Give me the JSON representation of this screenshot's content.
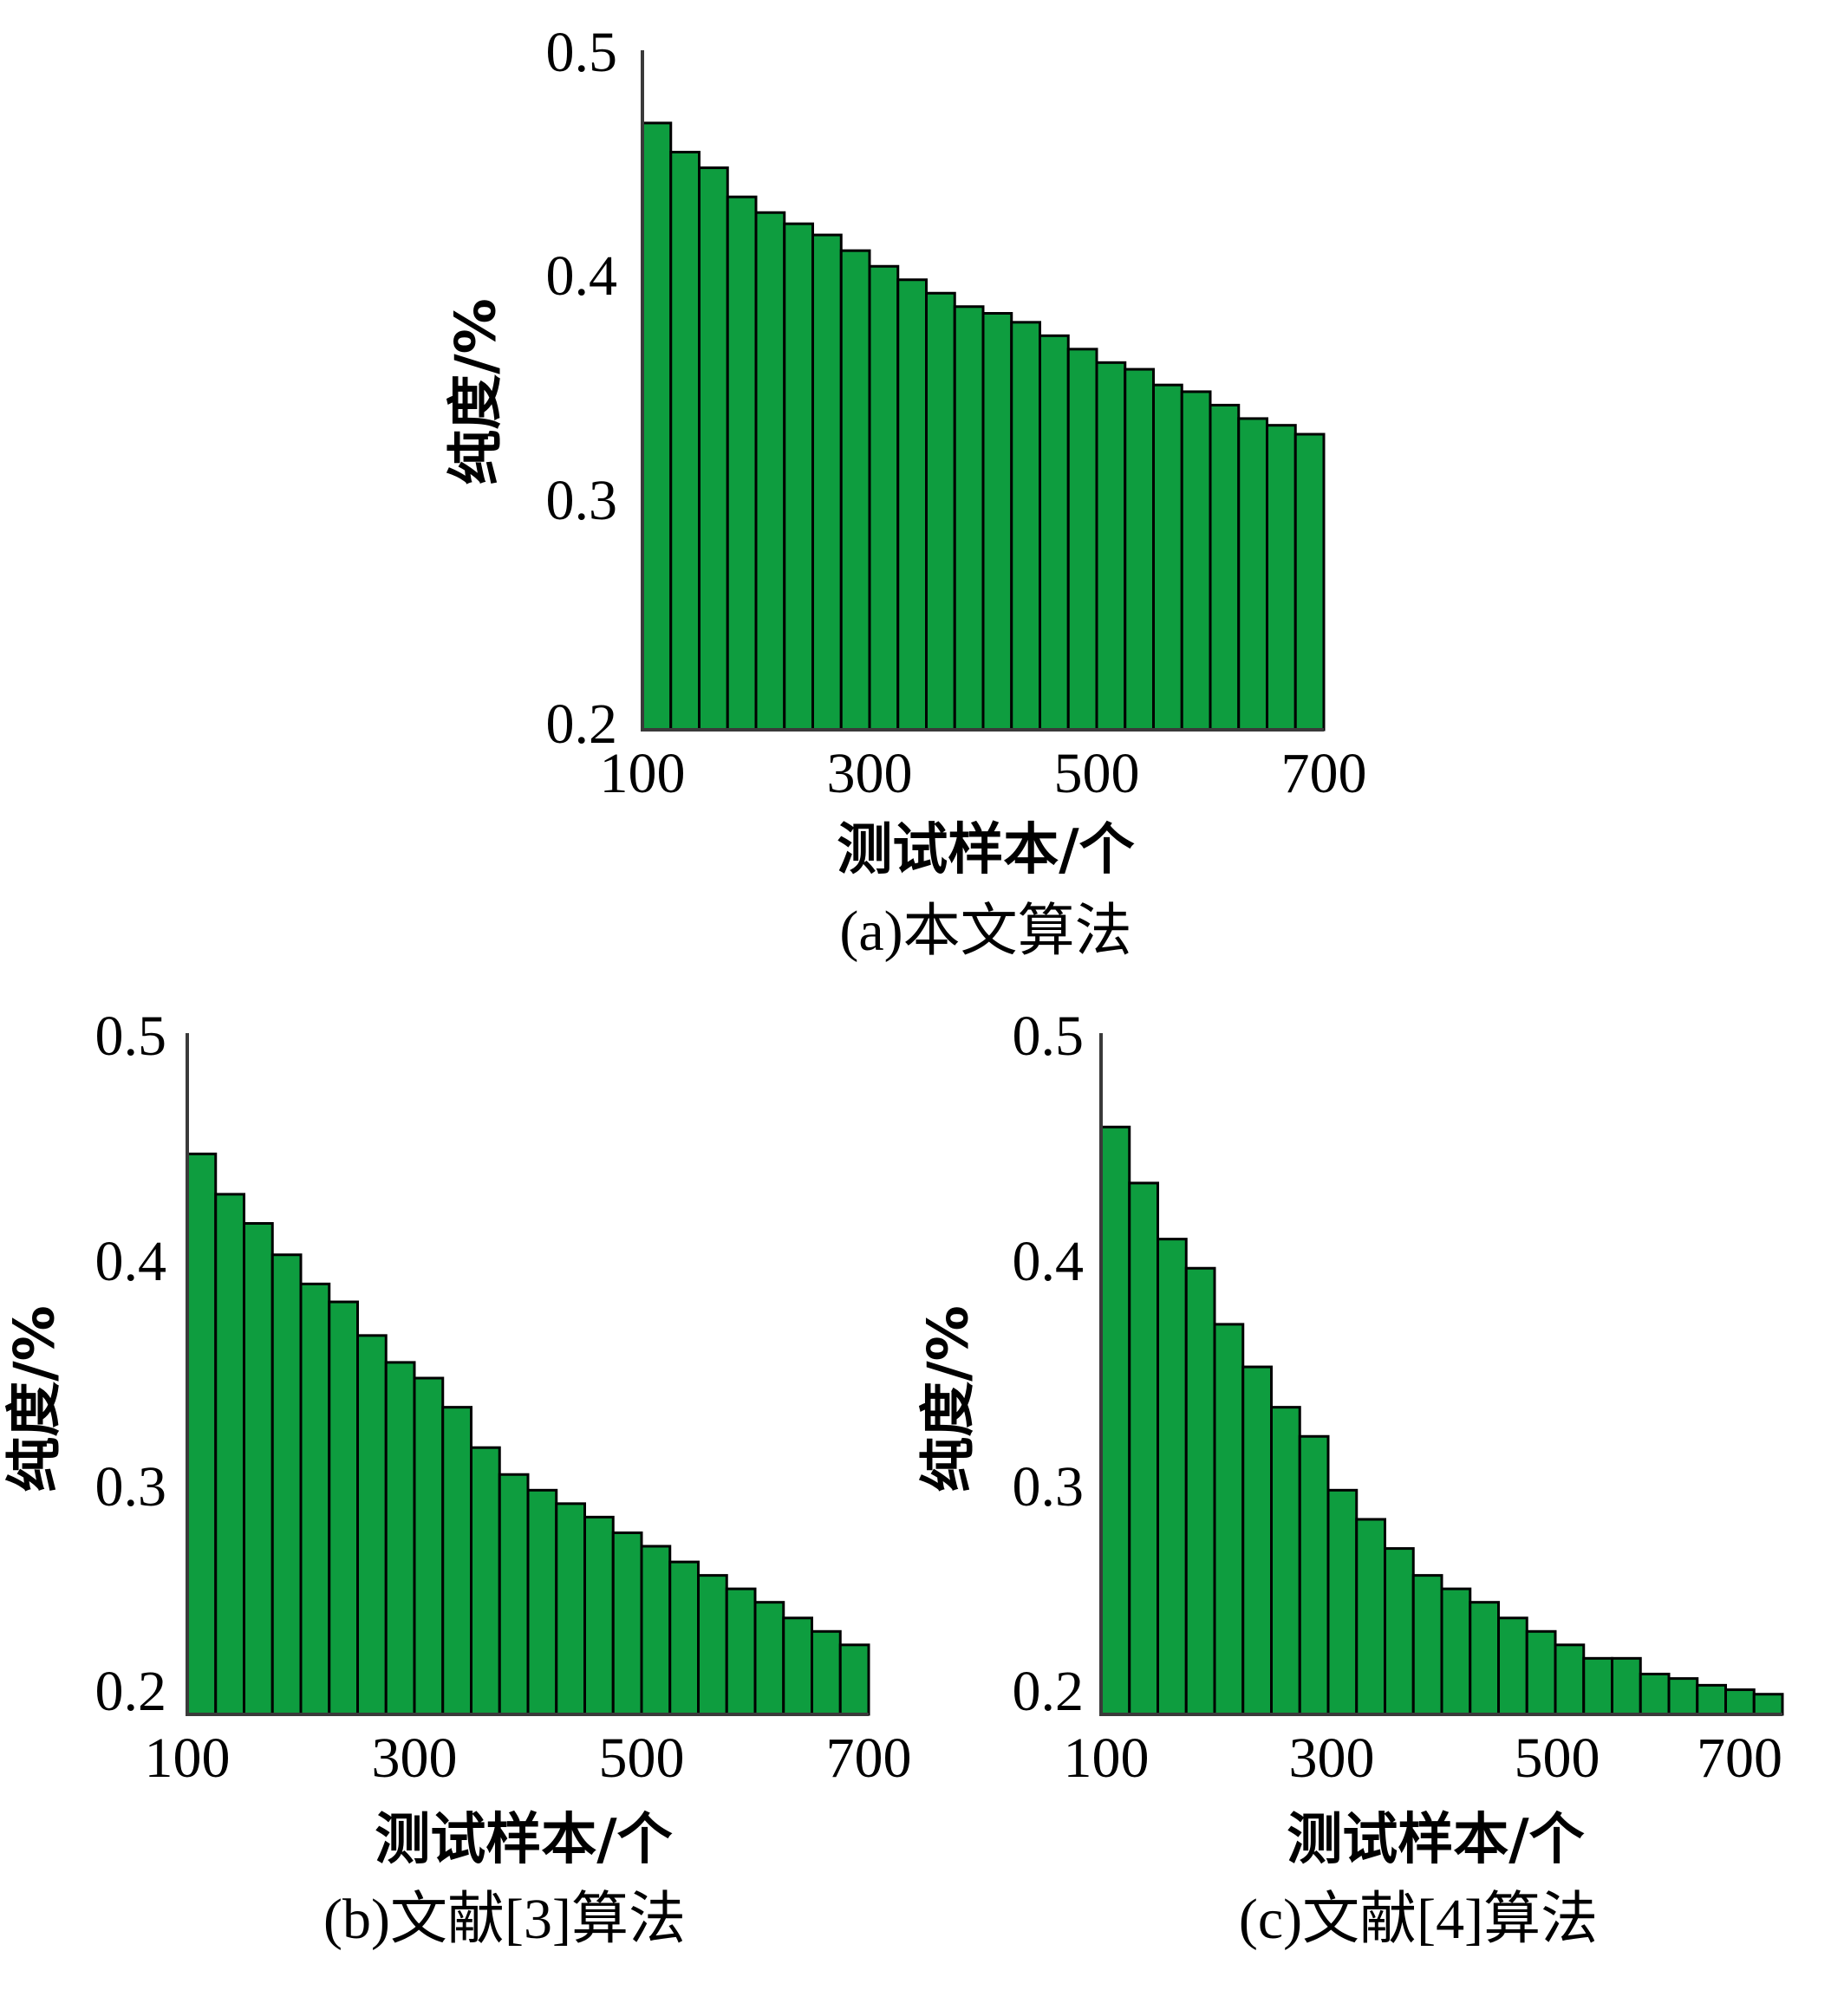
{
  "colors": {
    "bar_fill": "#0e9d3f",
    "bar_stroke": "#000000",
    "axis": "#3a3a3a"
  },
  "chart_data": [
    {
      "type": "bar",
      "caption": "(a)本文算法",
      "xlabel": "测试样本/个",
      "ylabel": "纯度/%",
      "ylim": [
        0.2,
        0.5
      ],
      "xlim": [
        100,
        700
      ],
      "yticks": [
        "0.2",
        "0.3",
        "0.4",
        "0.5"
      ],
      "xticks": [
        "100",
        "300",
        "500",
        "700"
      ],
      "grid": false,
      "values": [
        0.471,
        0.458,
        0.451,
        0.438,
        0.431,
        0.426,
        0.421,
        0.414,
        0.407,
        0.401,
        0.395,
        0.389,
        0.386,
        0.382,
        0.376,
        0.37,
        0.364,
        0.361,
        0.354,
        0.351,
        0.345,
        0.339,
        0.336,
        0.332
      ]
    },
    {
      "type": "bar",
      "caption": "(b)文献[3]算法",
      "xlabel": "测试样本/个",
      "ylabel": "纯度/%",
      "ylim": [
        0.2,
        0.5
      ],
      "xlim": [
        100,
        700
      ],
      "yticks": [
        "0.2",
        "0.3",
        "0.4",
        "0.5"
      ],
      "xticks": [
        "100",
        "300",
        "500",
        "700"
      ],
      "grid": false,
      "values": [
        0.45,
        0.432,
        0.419,
        0.405,
        0.392,
        0.384,
        0.369,
        0.357,
        0.35,
        0.337,
        0.319,
        0.307,
        0.3,
        0.294,
        0.288,
        0.281,
        0.275,
        0.268,
        0.262,
        0.256,
        0.25,
        0.243,
        0.237,
        0.231
      ]
    },
    {
      "type": "bar",
      "caption": "(c)文献[4]算法",
      "xlabel": "测试样本/个",
      "ylabel": "纯度/%",
      "ylim": [
        0.2,
        0.5
      ],
      "xlim": [
        100,
        700
      ],
      "yticks": [
        "0.2",
        "0.3",
        "0.4",
        "0.5"
      ],
      "xticks": [
        "100",
        "300",
        "500",
        "700"
      ],
      "grid": false,
      "values": [
        0.462,
        0.437,
        0.412,
        0.399,
        0.374,
        0.355,
        0.337,
        0.324,
        0.3,
        0.287,
        0.274,
        0.262,
        0.256,
        0.25,
        0.243,
        0.237,
        0.231,
        0.225,
        0.225,
        0.218,
        0.216,
        0.213,
        0.211,
        0.209
      ]
    }
  ]
}
